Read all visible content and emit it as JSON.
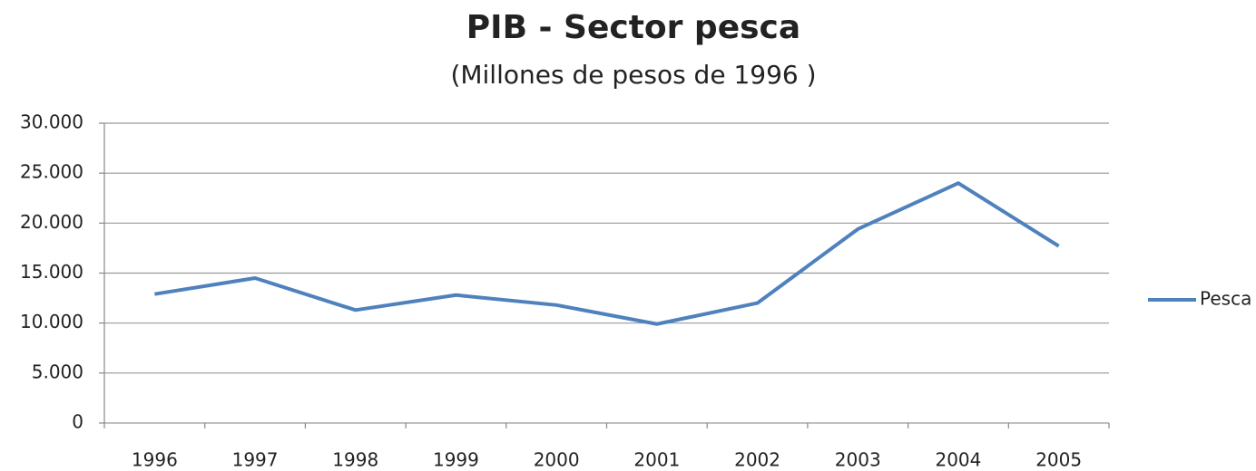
{
  "chart_data": {
    "type": "line",
    "title": "PIB - Sector pesca",
    "subtitle": "(Millones de pesos de 1996 )",
    "categories": [
      "1996",
      "1997",
      "1998",
      "1999",
      "2000",
      "2001",
      "2002",
      "2003",
      "2004",
      "2005"
    ],
    "series": [
      {
        "name": "Pesca",
        "color": "#4f81bd",
        "values": [
          12900,
          14500,
          11300,
          12800,
          11800,
          9900,
          12000,
          19400,
          24000,
          17700
        ]
      }
    ],
    "ylim": [
      0,
      30000
    ],
    "yticks": [
      0,
      {
        "value": 5000,
        "label": "5.000"
      },
      {
        "value": 10000,
        "label": "10.000"
      },
      {
        "value": 15000,
        "label": "15.000"
      },
      {
        "value": 20000,
        "label": "20.000"
      },
      {
        "value": 25000,
        "label": "25.000"
      },
      {
        "value": 30000,
        "label": "30.000"
      }
    ],
    "grid": true,
    "legend": "right"
  }
}
